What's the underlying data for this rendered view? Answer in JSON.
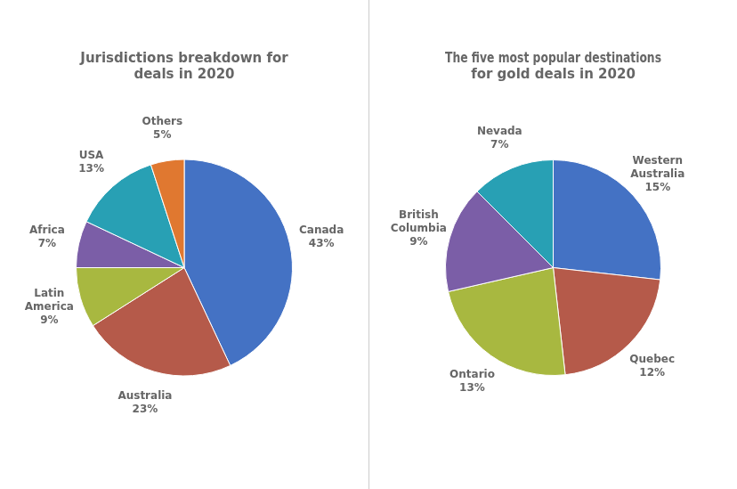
{
  "chart_data": [
    {
      "type": "pie",
      "title": "Jurisdictions breakdown for\ndeals in 2020",
      "categories": [
        "Canada",
        "Australia",
        "Latin\nAmerica",
        "Africa",
        "USA",
        "Others"
      ],
      "values": [
        43,
        23,
        9,
        7,
        13,
        5
      ],
      "value_labels": [
        "43%",
        "23%",
        "9%",
        "7%",
        "13%",
        "5%"
      ],
      "data_labels": true,
      "colors": [
        "#4472C4",
        "#B55A4A",
        "#A8B840",
        "#7B5EA7",
        "#28A0B4",
        "#E07830"
      ]
    },
    {
      "type": "pie",
      "title": "The five most popular destinations\nfor gold deals in 2020",
      "categories": [
        "Western\nAustralia",
        "Quebec",
        "Ontario",
        "British\nColumbia",
        "Nevada"
      ],
      "values": [
        15,
        12,
        13,
        9,
        7
      ],
      "value_labels": [
        "15%",
        "12%",
        "13%",
        "9%",
        "7%"
      ],
      "data_labels": true,
      "colors": [
        "#4472C4",
        "#B55A4A",
        "#A8B840",
        "#7B5EA7",
        "#28A0B4"
      ]
    }
  ]
}
